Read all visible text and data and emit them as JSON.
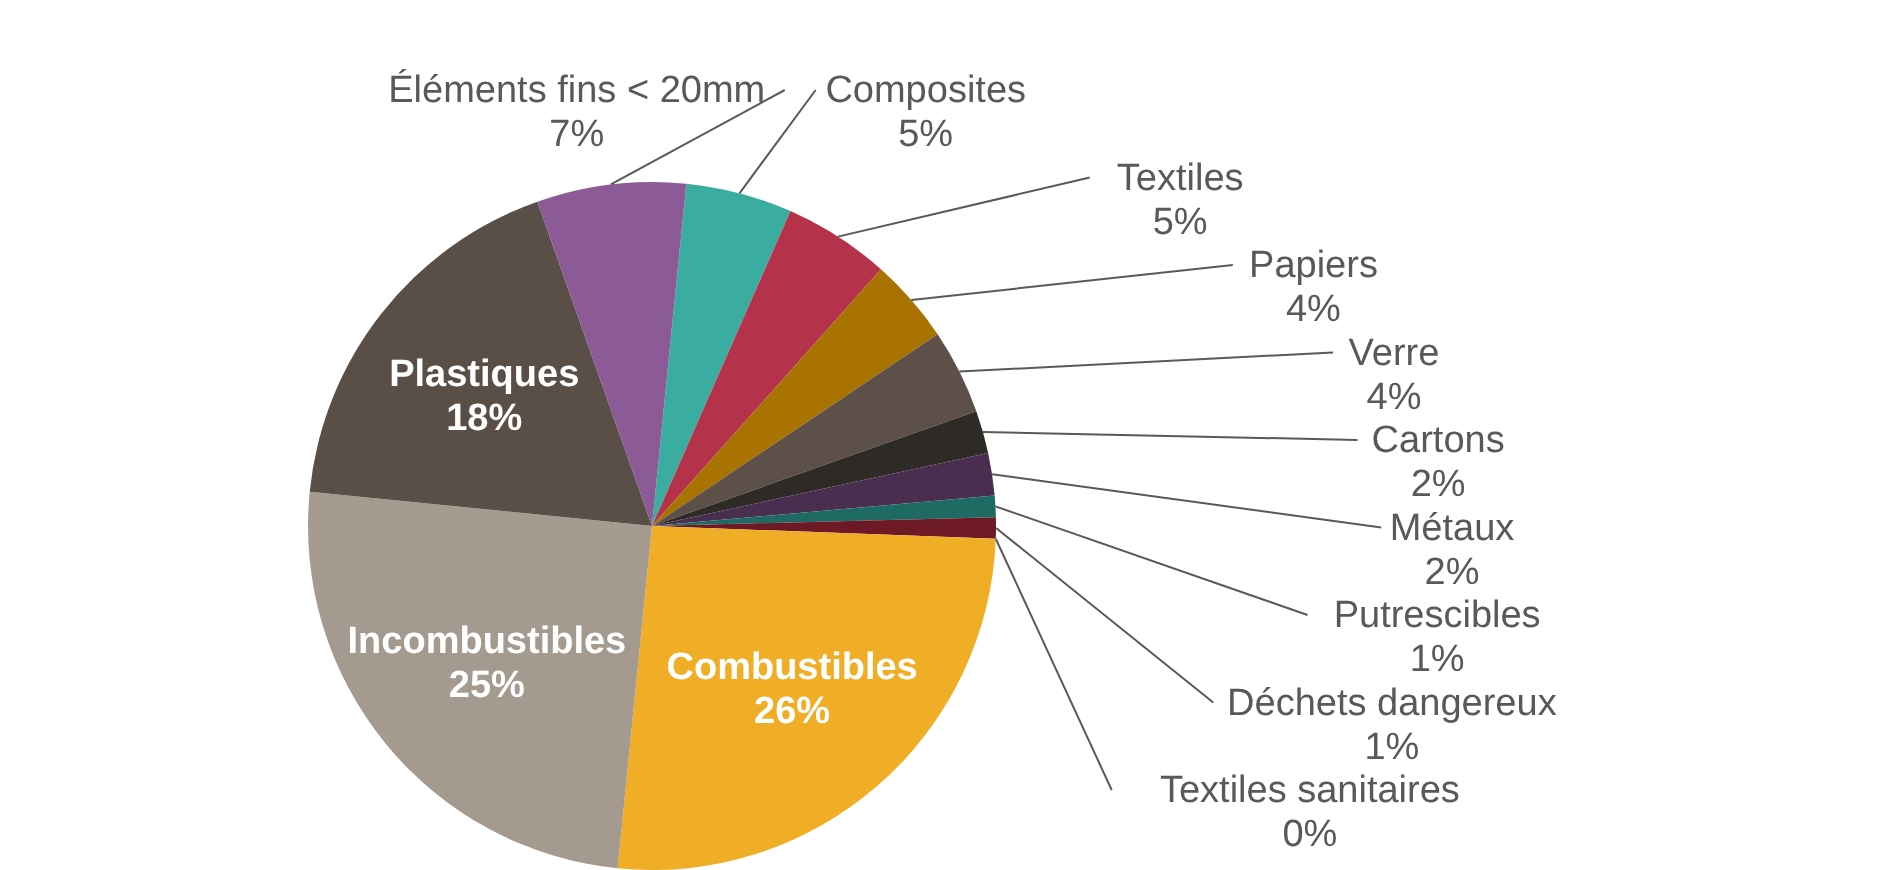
{
  "chart_data": {
    "type": "pie",
    "categories": [
      "Composites",
      "Textiles",
      "Papiers",
      "Verre",
      "Cartons",
      "Métaux",
      "Putrescibles",
      "Déchets dangereux",
      "Textiles sanitaires",
      "Combustibles",
      "Incombustibles",
      "Plastiques",
      "Éléments fins < 20mm"
    ],
    "values": [
      5,
      5,
      4,
      4,
      2,
      2,
      1,
      1,
      0,
      26,
      25,
      18,
      7
    ],
    "value_labels": [
      "5%",
      "5%",
      "4%",
      "4%",
      "2%",
      "2%",
      "1%",
      "1%",
      "0%",
      "26%",
      "25%",
      "18%",
      "7%"
    ],
    "colors": [
      "#3aada0",
      "#b5334a",
      "#a87300",
      "#5c5049",
      "#2e2a26",
      "#4a2e50",
      "#1f6b63",
      "#6e1a26",
      "#c07080",
      "#f0ad26",
      "#a59a8f",
      "#5a4f46",
      "#8c5a96"
    ]
  }
}
